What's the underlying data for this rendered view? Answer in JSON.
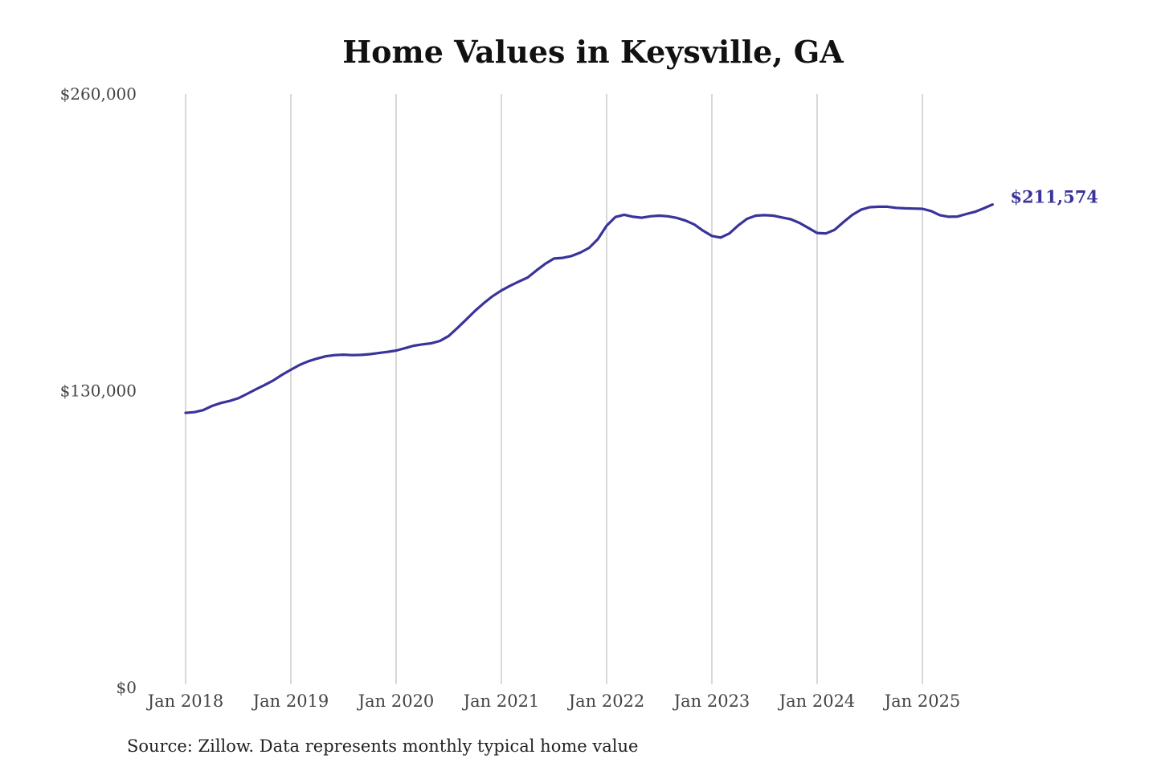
{
  "chart_data": {
    "type": "line",
    "title": "Home Values in Keysville, GA",
    "source": "Source: Zillow. Data represents monthly typical home value",
    "xlabel": "",
    "ylabel": "",
    "ylim": [
      0,
      260000
    ],
    "y_ticks": [
      {
        "value": 0,
        "label": "$0"
      },
      {
        "value": 130000,
        "label": "$130,000"
      },
      {
        "value": 260000,
        "label": "$260,000"
      }
    ],
    "x_ticks": [
      {
        "date": "2018-01",
        "label": "Jan 2018"
      },
      {
        "date": "2019-01",
        "label": "Jan 2019"
      },
      {
        "date": "2020-01",
        "label": "Jan 2020"
      },
      {
        "date": "2021-01",
        "label": "Jan 2021"
      },
      {
        "date": "2022-01",
        "label": "Jan 2022"
      },
      {
        "date": "2023-01",
        "label": "Jan 2023"
      },
      {
        "date": "2024-01",
        "label": "Jan 2024"
      },
      {
        "date": "2025-01",
        "label": "Jan 2025"
      }
    ],
    "grid": "vertical lines at x ticks",
    "line_color": "#3a349a",
    "end_label": "$211,574",
    "points": [
      {
        "date": "2018-01",
        "value": 120300
      },
      {
        "date": "2018-02",
        "value": 120600
      },
      {
        "date": "2018-03",
        "value": 121500
      },
      {
        "date": "2018-04",
        "value": 123300
      },
      {
        "date": "2018-05",
        "value": 124600
      },
      {
        "date": "2018-06",
        "value": 125500
      },
      {
        "date": "2018-07",
        "value": 126700
      },
      {
        "date": "2018-08",
        "value": 128600
      },
      {
        "date": "2018-09",
        "value": 130600
      },
      {
        "date": "2018-10",
        "value": 132500
      },
      {
        "date": "2018-11",
        "value": 134500
      },
      {
        "date": "2018-12",
        "value": 137000
      },
      {
        "date": "2019-01",
        "value": 139200
      },
      {
        "date": "2019-02",
        "value": 141300
      },
      {
        "date": "2019-03",
        "value": 142900
      },
      {
        "date": "2019-04",
        "value": 144100
      },
      {
        "date": "2019-05",
        "value": 145100
      },
      {
        "date": "2019-06",
        "value": 145600
      },
      {
        "date": "2019-07",
        "value": 145800
      },
      {
        "date": "2019-08",
        "value": 145600
      },
      {
        "date": "2019-09",
        "value": 145700
      },
      {
        "date": "2019-10",
        "value": 146000
      },
      {
        "date": "2019-11",
        "value": 146500
      },
      {
        "date": "2019-12",
        "value": 147000
      },
      {
        "date": "2020-01",
        "value": 147600
      },
      {
        "date": "2020-02",
        "value": 148600
      },
      {
        "date": "2020-03",
        "value": 149700
      },
      {
        "date": "2020-04",
        "value": 150300
      },
      {
        "date": "2020-05",
        "value": 150800
      },
      {
        "date": "2020-06",
        "value": 151800
      },
      {
        "date": "2020-07",
        "value": 154000
      },
      {
        "date": "2020-08",
        "value": 157500
      },
      {
        "date": "2020-09",
        "value": 161200
      },
      {
        "date": "2020-10",
        "value": 165000
      },
      {
        "date": "2020-11",
        "value": 168400
      },
      {
        "date": "2020-12",
        "value": 171400
      },
      {
        "date": "2021-01",
        "value": 173900
      },
      {
        "date": "2021-02",
        "value": 176000
      },
      {
        "date": "2021-03",
        "value": 177800
      },
      {
        "date": "2021-04",
        "value": 179600
      },
      {
        "date": "2021-05",
        "value": 182700
      },
      {
        "date": "2021-06",
        "value": 185600
      },
      {
        "date": "2021-07",
        "value": 187900
      },
      {
        "date": "2021-08",
        "value": 188200
      },
      {
        "date": "2021-09",
        "value": 189000
      },
      {
        "date": "2021-10",
        "value": 190500
      },
      {
        "date": "2021-11",
        "value": 192600
      },
      {
        "date": "2021-12",
        "value": 196400
      },
      {
        "date": "2022-01",
        "value": 202300
      },
      {
        "date": "2022-02",
        "value": 206100
      },
      {
        "date": "2022-03",
        "value": 207100
      },
      {
        "date": "2022-04",
        "value": 206200
      },
      {
        "date": "2022-05",
        "value": 205800
      },
      {
        "date": "2022-06",
        "value": 206400
      },
      {
        "date": "2022-07",
        "value": 206700
      },
      {
        "date": "2022-08",
        "value": 206400
      },
      {
        "date": "2022-09",
        "value": 205700
      },
      {
        "date": "2022-10",
        "value": 204500
      },
      {
        "date": "2022-11",
        "value": 202800
      },
      {
        "date": "2022-12",
        "value": 200100
      },
      {
        "date": "2023-01",
        "value": 197800
      },
      {
        "date": "2023-02",
        "value": 197100
      },
      {
        "date": "2023-03",
        "value": 198900
      },
      {
        "date": "2023-04",
        "value": 202400
      },
      {
        "date": "2023-05",
        "value": 205300
      },
      {
        "date": "2023-06",
        "value": 206700
      },
      {
        "date": "2023-07",
        "value": 206900
      },
      {
        "date": "2023-08",
        "value": 206700
      },
      {
        "date": "2023-09",
        "value": 205900
      },
      {
        "date": "2023-10",
        "value": 205100
      },
      {
        "date": "2023-11",
        "value": 203500
      },
      {
        "date": "2023-12",
        "value": 201300
      },
      {
        "date": "2024-01",
        "value": 199100
      },
      {
        "date": "2024-02",
        "value": 198900
      },
      {
        "date": "2024-03",
        "value": 200500
      },
      {
        "date": "2024-04",
        "value": 203900
      },
      {
        "date": "2024-05",
        "value": 207000
      },
      {
        "date": "2024-06",
        "value": 209300
      },
      {
        "date": "2024-07",
        "value": 210400
      },
      {
        "date": "2024-08",
        "value": 210600
      },
      {
        "date": "2024-09",
        "value": 210600
      },
      {
        "date": "2024-10",
        "value": 210100
      },
      {
        "date": "2024-11",
        "value": 209900
      },
      {
        "date": "2024-12",
        "value": 209800
      },
      {
        "date": "2025-01",
        "value": 209700
      },
      {
        "date": "2025-02",
        "value": 208700
      },
      {
        "date": "2025-03",
        "value": 206900
      },
      {
        "date": "2025-04",
        "value": 206200
      },
      {
        "date": "2025-05",
        "value": 206300
      },
      {
        "date": "2025-06",
        "value": 207400
      },
      {
        "date": "2025-07",
        "value": 208400
      },
      {
        "date": "2025-08",
        "value": 209900
      },
      {
        "date": "2025-09",
        "value": 211574
      }
    ]
  }
}
